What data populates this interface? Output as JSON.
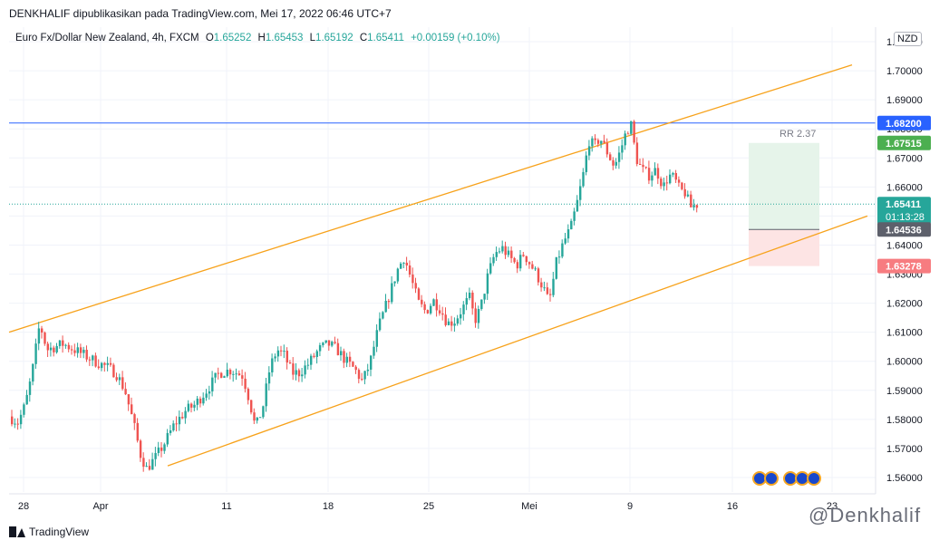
{
  "header": {
    "publisher_line": "DENKHALIF dipublikasikan pada TradingView.com, Mei 17, 2022 06:46 UTC+7"
  },
  "legend": {
    "symbol": "Euro Fx/Dollar New Zealand, 4h, FXCM",
    "o_label": "O",
    "o_value": "1.65252",
    "h_label": "H",
    "h_value": "1.65453",
    "l_label": "L",
    "l_value": "1.65192",
    "c_label": "C",
    "c_value": "1.65411",
    "change": "+0.00159 (+0.10%)"
  },
  "currency_button": "NZD",
  "footer": {
    "brand": "TradingView"
  },
  "watermark": "@Denkhalif",
  "colors": {
    "up": "#26a69a",
    "down": "#ef5350",
    "channel": "#f7a21b",
    "hline": "#2962ff",
    "rr_profit": "#e6f4ea",
    "rr_loss": "#fde4e4"
  },
  "chart_data": {
    "type": "candlestick",
    "title": "Euro Fx/Dollar New Zealand, 4h, FXCM",
    "ylim": [
      1.555,
      1.715
    ],
    "y_ticks": [
      1.71,
      1.7,
      1.69,
      1.68,
      1.67,
      1.66,
      1.65,
      1.64,
      1.63,
      1.62,
      1.61,
      1.6,
      1.59,
      1.58,
      1.57,
      1.56
    ],
    "y_tick_labels": [
      "1.71000",
      "1.70000",
      "1.69000",
      "1.68000",
      "1.67000",
      "1.66000",
      "1.65000",
      "1.64000",
      "1.63000",
      "1.62000",
      "1.61000",
      "1.60000",
      "1.59000",
      "1.58000",
      "1.57000",
      "1.56000"
    ],
    "x_ticks": [
      "28",
      "Apr",
      "11",
      "18",
      "25",
      "Mei",
      "9",
      "16",
      "23"
    ],
    "price_badges": [
      {
        "label": "1.68200",
        "value": 1.682,
        "color": "#2962ff"
      },
      {
        "label": "1.67515",
        "value": 1.67515,
        "color": "#4caf50"
      },
      {
        "label": "1.65411",
        "value": 1.65411,
        "color": "#26a69a",
        "sub": "01:13:28"
      },
      {
        "label": "1.64536",
        "value": 1.64536,
        "color": "#5d606b"
      },
      {
        "label": "1.63278",
        "value": 1.63278,
        "color": "#f77c80"
      }
    ],
    "horizontal_line": 1.682,
    "rr_label": "RR 2.37",
    "risk_reward": {
      "entry": 1.64536,
      "target": 1.67515,
      "stop": 1.63278
    },
    "last_price": 1.65411,
    "path": [
      [
        0,
        1.581
      ],
      [
        10,
        1.579
      ],
      [
        18,
        1.585
      ],
      [
        25,
        1.595
      ],
      [
        34,
        1.613
      ],
      [
        42,
        1.604
      ],
      [
        60,
        1.606
      ],
      [
        78,
        1.603
      ],
      [
        95,
        1.6
      ],
      [
        108,
        1.598
      ],
      [
        118,
        1.596
      ],
      [
        128,
        1.59
      ],
      [
        138,
        1.578
      ],
      [
        145,
        1.568
      ],
      [
        152,
        1.563
      ],
      [
        162,
        1.567
      ],
      [
        172,
        1.572
      ],
      [
        182,
        1.578
      ],
      [
        195,
        1.583
      ],
      [
        205,
        1.585
      ],
      [
        218,
        1.59
      ],
      [
        232,
        1.596
      ],
      [
        245,
        1.597
      ],
      [
        258,
        1.595
      ],
      [
        265,
        1.587
      ],
      [
        272,
        1.577
      ],
      [
        280,
        1.584
      ],
      [
        288,
        1.598
      ],
      [
        296,
        1.604
      ],
      [
        304,
        1.602
      ],
      [
        312,
        1.596
      ],
      [
        320,
        1.596
      ],
      [
        330,
        1.599
      ],
      [
        342,
        1.604
      ],
      [
        352,
        1.606
      ],
      [
        362,
        1.604
      ],
      [
        372,
        1.6
      ],
      [
        382,
        1.597
      ],
      [
        390,
        1.593
      ],
      [
        398,
        1.599
      ],
      [
        408,
        1.612
      ],
      [
        418,
        1.621
      ],
      [
        428,
        1.631
      ],
      [
        436,
        1.636
      ],
      [
        444,
        1.628
      ],
      [
        452,
        1.62
      ],
      [
        460,
        1.617
      ],
      [
        468,
        1.621
      ],
      [
        476,
        1.618
      ],
      [
        484,
        1.613
      ],
      [
        492,
        1.614
      ],
      [
        500,
        1.618
      ],
      [
        508,
        1.622
      ],
      [
        514,
        1.614
      ],
      [
        520,
        1.618
      ],
      [
        528,
        1.629
      ],
      [
        536,
        1.637
      ],
      [
        544,
        1.639
      ],
      [
        552,
        1.636
      ],
      [
        560,
        1.633
      ],
      [
        568,
        1.637
      ],
      [
        574,
        1.634
      ],
      [
        582,
        1.63
      ],
      [
        590,
        1.625
      ],
      [
        596,
        1.62
      ],
      [
        604,
        1.634
      ],
      [
        612,
        1.641
      ],
      [
        620,
        1.646
      ],
      [
        628,
        1.656
      ],
      [
        634,
        1.665
      ],
      [
        640,
        1.676
      ],
      [
        646,
        1.674
      ],
      [
        652,
        1.677
      ],
      [
        660,
        1.672
      ],
      [
        668,
        1.667
      ],
      [
        674,
        1.672
      ],
      [
        680,
        1.678
      ],
      [
        686,
        1.682
      ],
      [
        692,
        1.67
      ],
      [
        698,
        1.666
      ],
      [
        706,
        1.664
      ],
      [
        714,
        1.666
      ],
      [
        722,
        1.66
      ],
      [
        728,
        1.664
      ],
      [
        734,
        1.663
      ],
      [
        740,
        1.659
      ],
      [
        746,
        1.658
      ],
      [
        752,
        1.653
      ],
      [
        758,
        1.654
      ]
    ],
    "channel": {
      "upper": [
        [
          0,
          1.61
        ],
        [
          1,
          1.702
        ]
      ],
      "lower": [
        [
          0,
          1.564
        ],
        [
          1,
          1.65
        ]
      ]
    }
  }
}
